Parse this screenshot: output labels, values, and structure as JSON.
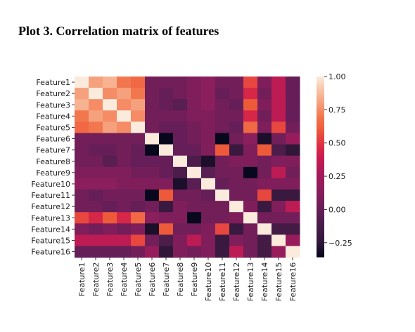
{
  "title": "Plot 3. Correlation matrix of features",
  "colormap": {
    "name": "rocket",
    "stops": [
      [
        -0.36,
        "#03051a"
      ],
      [
        -0.25,
        "#30173a"
      ],
      [
        -0.1,
        "#4c1d4b"
      ],
      [
        0.0,
        "#661e58"
      ],
      [
        0.15,
        "#8b1e5c"
      ],
      [
        0.25,
        "#a11a5b"
      ],
      [
        0.4,
        "#cb1b4f"
      ],
      [
        0.5,
        "#e13342"
      ],
      [
        0.6,
        "#ed5a3a"
      ],
      [
        0.7,
        "#f3774e"
      ],
      [
        0.8,
        "#f6a17d"
      ],
      [
        0.9,
        "#f7c4a6"
      ],
      [
        1.0,
        "#faebdd"
      ]
    ]
  },
  "chart_data": {
    "type": "heatmap",
    "title": "Plot 3. Correlation matrix of features",
    "x_labels": [
      "Feature1",
      "Feature2",
      "Feature3",
      "Feature4",
      "Feature5",
      "Feature6",
      "Feature7",
      "Feature8",
      "Feature9",
      "Feature10",
      "Feature11",
      "Feature12",
      "Feature13",
      "Feature14",
      "Feature15",
      "Feature16"
    ],
    "y_labels": [
      "Feature1",
      "Feature2",
      "Feature3",
      "Feature4",
      "Feature5",
      "Feature6",
      "Feature7",
      "Feature8",
      "Feature9",
      "Feature10",
      "Feature11",
      "Feature12",
      "Feature13",
      "Feature14",
      "Feature15",
      "Feature16"
    ],
    "vmin": -0.36,
    "vmax": 1.0,
    "colorbar_ticks": [
      1.0,
      0.75,
      0.5,
      0.25,
      0.0,
      -0.25
    ],
    "colorbar_tick_labels": [
      "1.00",
      "0.75",
      "0.50",
      "0.25",
      "0.00",
      "−0.25"
    ],
    "values": [
      [
        1.0,
        0.8,
        0.85,
        0.7,
        0.65,
        0.05,
        0.05,
        0.05,
        0.1,
        0.15,
        0.05,
        0.05,
        0.55,
        0.1,
        0.35,
        0.0
      ],
      [
        0.8,
        1.0,
        0.75,
        0.8,
        0.7,
        0.05,
        0.0,
        0.05,
        0.1,
        0.15,
        0.0,
        0.05,
        0.45,
        0.05,
        0.35,
        0.0
      ],
      [
        0.85,
        0.75,
        1.0,
        0.75,
        0.8,
        0.05,
        0.0,
        -0.05,
        0.1,
        0.15,
        0.05,
        0.0,
        0.6,
        0.1,
        0.35,
        0.0
      ],
      [
        0.7,
        0.8,
        0.75,
        1.0,
        0.75,
        0.05,
        0.05,
        0.05,
        0.1,
        0.1,
        0.05,
        0.05,
        0.45,
        0.05,
        0.35,
        0.0
      ],
      [
        0.65,
        0.7,
        0.8,
        0.75,
        1.0,
        0.05,
        0.0,
        0.0,
        0.05,
        0.1,
        0.05,
        0.0,
        0.65,
        0.1,
        0.55,
        0.05
      ],
      [
        0.05,
        0.05,
        0.05,
        0.05,
        0.05,
        1.0,
        -0.35,
        0.0,
        0.05,
        0.1,
        -0.35,
        0.05,
        0.15,
        -0.3,
        0.05,
        0.2
      ],
      [
        0.05,
        0.0,
        0.0,
        0.05,
        0.0,
        -0.35,
        1.0,
        0.0,
        0.0,
        0.1,
        0.6,
        -0.2,
        0.1,
        0.6,
        -0.1,
        -0.25
      ],
      [
        0.05,
        0.05,
        -0.05,
        0.05,
        0.0,
        0.0,
        0.0,
        1.0,
        -0.1,
        -0.3,
        0.05,
        0.1,
        0.1,
        0.05,
        0.1,
        0.1
      ],
      [
        0.1,
        0.1,
        0.1,
        0.1,
        0.05,
        0.05,
        0.0,
        -0.1,
        1.0,
        -0.05,
        0.05,
        0.05,
        -0.35,
        0.05,
        0.35,
        0.05
      ],
      [
        0.15,
        0.15,
        0.15,
        0.1,
        0.1,
        0.1,
        0.1,
        -0.3,
        -0.05,
        1.0,
        0.0,
        0.05,
        0.05,
        0.1,
        0.1,
        0.1
      ],
      [
        0.05,
        0.0,
        0.05,
        0.05,
        0.05,
        -0.35,
        0.6,
        0.05,
        0.05,
        0.0,
        1.0,
        0.05,
        0.05,
        0.55,
        -0.2,
        -0.2
      ],
      [
        0.05,
        0.05,
        0.0,
        0.05,
        0.0,
        0.05,
        -0.2,
        0.1,
        0.05,
        0.05,
        0.05,
        1.0,
        0.1,
        -0.2,
        0.1,
        0.35
      ],
      [
        0.55,
        0.45,
        0.6,
        0.45,
        0.65,
        0.15,
        0.1,
        0.1,
        -0.35,
        0.05,
        0.05,
        0.1,
        1.0,
        0.05,
        0.05,
        0.05
      ],
      [
        0.1,
        0.05,
        0.1,
        0.05,
        0.1,
        -0.3,
        0.6,
        0.05,
        0.05,
        0.1,
        0.55,
        -0.2,
        0.05,
        1.0,
        -0.15,
        -0.15
      ],
      [
        0.35,
        0.35,
        0.35,
        0.35,
        0.55,
        0.05,
        -0.1,
        0.1,
        0.35,
        0.1,
        -0.2,
        0.1,
        0.05,
        -0.15,
        1.0,
        0.2
      ],
      [
        0.0,
        0.0,
        0.0,
        0.0,
        0.05,
        0.2,
        -0.25,
        0.1,
        0.05,
        0.1,
        -0.2,
        0.35,
        0.05,
        -0.15,
        0.2,
        1.0
      ]
    ]
  }
}
